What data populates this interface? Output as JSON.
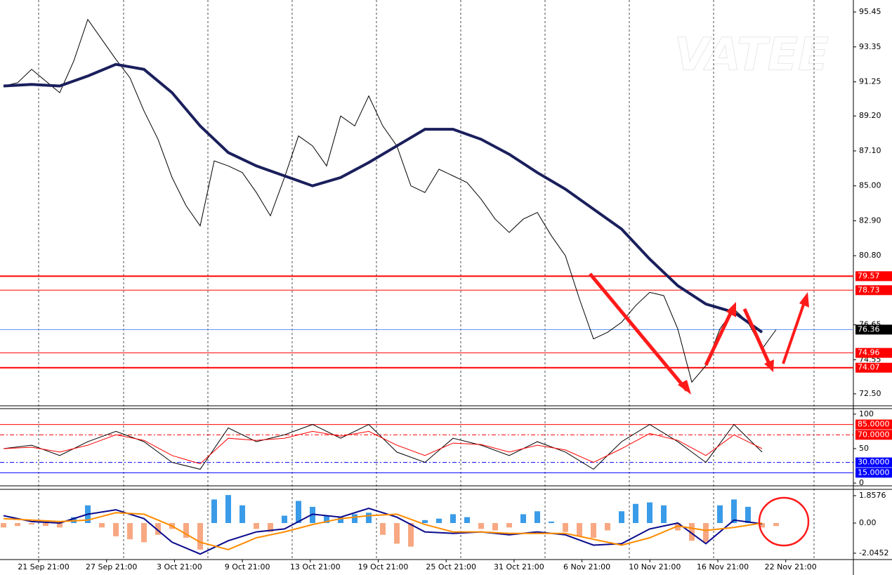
{
  "watermark": "VATEE",
  "time_axis": {
    "labels": [
      "21 Sep 21:00",
      "27 Sep 21:00",
      "3 Oct 21:00",
      "9 Oct 21:00",
      "13 Oct 21:00",
      "19 Oct 21:00",
      "25 Oct 21:00",
      "31 Oct 21:00",
      "6 Nov 21:00",
      "10 Nov 21:00",
      "16 Nov 21:00",
      "22 Nov 21:00"
    ]
  },
  "chart_data": [
    {
      "type": "line",
      "ylim": [
        71.78,
        96.17
      ],
      "yticks": [
        95.45,
        93.35,
        91.25,
        {
          "value": 89.2,
          "label": "89.20"
        },
        {
          "value": 87.1,
          "label": "87.10"
        },
        {
          "value": 85,
          "label": "85.00"
        },
        {
          "value": 82.9,
          "label": "82.90"
        },
        {
          "value": 80.8,
          "label": "80.80"
        },
        76.65,
        74.55,
        {
          "value": 72.5,
          "label": "72.50"
        }
      ],
      "levels": [
        {
          "value": 79.57,
          "color": "#ff0000"
        },
        {
          "value": 78.73,
          "color": "#ff0000"
        },
        {
          "value": 76.36,
          "color": "#6495ed"
        },
        {
          "value": 74.96,
          "color": "#ff0000"
        },
        {
          "value": 74.07,
          "color": "#ff0000"
        }
      ],
      "series": [
        {
          "color": "#000000",
          "values": [
            91.0,
            91.2,
            92.0,
            91.3,
            90.6,
            92.5,
            95.0,
            93.8,
            92.6,
            91.5,
            89.5,
            87.8,
            85.5,
            83.8,
            82.6,
            86.5,
            86.2,
            85.8,
            84.6,
            83.2,
            85.5,
            88.0,
            87.4,
            86.2,
            89.2,
            88.6,
            90.4,
            88.6,
            87.4,
            85.0,
            84.6,
            86.0,
            85.6,
            85.2,
            84.2,
            83.0,
            82.2,
            83.0,
            83.4,
            82.0,
            80.8,
            78.2,
            75.8,
            76.2,
            76.8,
            77.8,
            78.6,
            78.4,
            76.4,
            73.2,
            74.2,
            76.4,
            77.6,
            76.8,
            75.2,
            76.36
          ]
        },
        {
          "color": "#1a1f5c",
          "values": [
            91.0,
            91.1,
            91.0,
            91.6,
            92.3,
            92.0,
            90.6,
            88.6,
            87.0,
            86.2,
            85.6,
            85.0,
            85.5,
            86.4,
            87.4,
            88.4,
            88.4,
            87.8,
            86.9,
            85.8,
            84.8,
            83.6,
            82.4,
            80.6,
            79.0,
            77.9,
            77.4,
            76.2
          ]
        }
      ]
    },
    {
      "type": "line",
      "ylim": [
        -4,
        108
      ],
      "yticks": [
        100,
        50,
        0
      ],
      "levels": [
        {
          "value": 85,
          "label": "85.0000",
          "color": "#ff0000"
        },
        {
          "value": 70,
          "label": "70.0000",
          "color": "#ff0000"
        },
        {
          "value": 30,
          "label": "30.0000",
          "color": "#0000ff"
        },
        {
          "value": 15,
          "label": "15.0000",
          "color": "#0000ff"
        }
      ],
      "series": [
        {
          "color": "#000000",
          "values": [
            50,
            55,
            40,
            60,
            75,
            60,
            30,
            20,
            80,
            60,
            70,
            85,
            65,
            85,
            45,
            30,
            65,
            55,
            40,
            60,
            45,
            20,
            60,
            85,
            60,
            30,
            85,
            45
          ]
        },
        {
          "color": "#ff0000",
          "values": [
            50,
            52,
            45,
            55,
            70,
            62,
            40,
            28,
            65,
            62,
            65,
            75,
            68,
            75,
            55,
            40,
            58,
            56,
            45,
            55,
            48,
            30,
            50,
            72,
            62,
            40,
            70,
            50
          ]
        }
      ]
    },
    {
      "type": "bar",
      "ylim": [
        -2.476,
        2.286
      ],
      "yticks": [
        1.8576,
        {
          "value": 0,
          "label": "0.00"
        },
        -2.0452
      ],
      "colors": {
        "up": "#3a9be8",
        "down": "#f7a882"
      },
      "values": [
        -0.3,
        -0.2,
        -0.1,
        -0.2,
        -0.3,
        0.4,
        1.2,
        -0.3,
        -0.9,
        -1.1,
        -1.3,
        -0.8,
        -0.4,
        -1.0,
        -1.8,
        1.6,
        1.9,
        1.2,
        -0.4,
        -0.6,
        0.5,
        1.5,
        1.1,
        0.5,
        0.4,
        0.6,
        0.7,
        -0.8,
        -1.4,
        -1.6,
        0.2,
        0.3,
        0.6,
        0.4,
        -0.4,
        -0.5,
        -0.3,
        0.6,
        0.8,
        0.1,
        -0.6,
        -0.9,
        -1.0,
        -0.5,
        0.8,
        1.3,
        1.4,
        1.2,
        -0.5,
        -1.2,
        -1.3,
        1.2,
        1.6,
        1.1,
        -0.3,
        -0.2
      ],
      "series": [
        {
          "color": "#0a0a8c",
          "values": [
            0.5,
            0.1,
            0.0,
            0.6,
            0.9,
            0.3,
            -1.3,
            -2.1,
            -1.2,
            -0.6,
            -0.4,
            0.6,
            0.4,
            1.0,
            0.4,
            -0.6,
            -0.7,
            -0.6,
            -0.8,
            -0.6,
            -0.8,
            -1.5,
            -1.4,
            -0.4,
            0.0,
            -1.4,
            0.2,
            -0.05
          ]
        },
        {
          "color": "#ff8c00",
          "values": [
            0.3,
            0.2,
            0.1,
            0.2,
            0.7,
            0.6,
            -0.2,
            -1.3,
            -1.8,
            -1.0,
            -0.6,
            -0.1,
            0.3,
            0.5,
            0.6,
            -0.1,
            -0.6,
            -0.6,
            -0.7,
            -0.7,
            -0.7,
            -1.1,
            -1.5,
            -1.0,
            -0.2,
            -0.5,
            -0.3,
            0.0
          ]
        }
      ]
    }
  ]
}
